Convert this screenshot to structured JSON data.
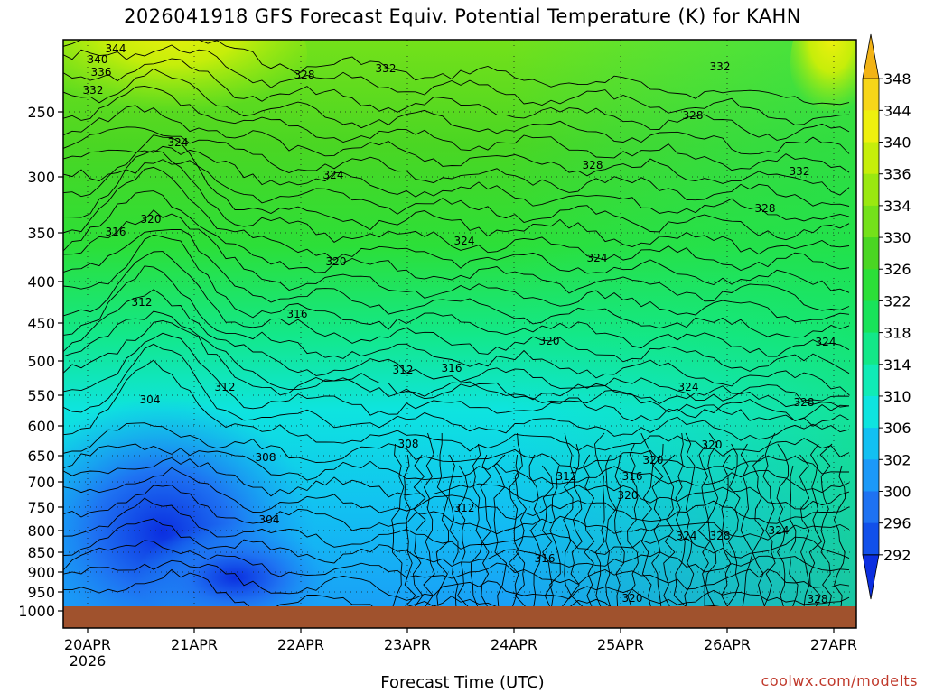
{
  "title": "2026041918 GFS Forecast Equiv. Potential Temperature (K) for KAHN",
  "watermark": "coolwx.com/modelts",
  "chart_data": {
    "type": "heatmap",
    "title": "2026041918 GFS Forecast Equiv. Potential Temperature (K) for KAHN",
    "xlabel": "Forecast Time (UTC)",
    "ylabel": "",
    "x_ticks": [
      "20APR",
      "21APR",
      "22APR",
      "23APR",
      "24APR",
      "25APR",
      "26APR",
      "27APR"
    ],
    "x_tick_sublabel": "2026",
    "y_ticks": [
      250,
      300,
      350,
      400,
      450,
      500,
      550,
      600,
      650,
      700,
      750,
      800,
      850,
      900,
      950,
      1000
    ],
    "y_axis": "pressure (hPa), reversed",
    "ylim": [
      1000,
      200
    ],
    "colorbar_levels": [
      292,
      296,
      300,
      302,
      306,
      310,
      314,
      318,
      322,
      326,
      330,
      334,
      336,
      340,
      344,
      348
    ],
    "colorbar_colors": [
      "#0b2fe0",
      "#1150ea",
      "#1e72f2",
      "#1b99f8",
      "#12c0f2",
      "#0ee4df",
      "#10ebb6",
      "#13e888",
      "#19e35a",
      "#2cdf38",
      "#4ad623",
      "#74e11a",
      "#9ae810",
      "#c6ee0a",
      "#eef00e",
      "#f7d619",
      "#f2b316"
    ],
    "contour_labels": [
      {
        "text": "344"
      },
      {
        "text": "340"
      },
      {
        "text": "336"
      },
      {
        "text": "332"
      },
      {
        "text": "328"
      },
      {
        "text": "332"
      },
      {
        "text": "332"
      },
      {
        "text": "328"
      },
      {
        "text": "324"
      },
      {
        "text": "328"
      },
      {
        "text": "324"
      },
      {
        "text": "332"
      },
      {
        "text": "320"
      },
      {
        "text": "328"
      },
      {
        "text": "316"
      },
      {
        "text": "324"
      },
      {
        "text": "324"
      },
      {
        "text": "320"
      },
      {
        "text": "312"
      },
      {
        "text": "316"
      },
      {
        "text": "320"
      },
      {
        "text": "324"
      },
      {
        "text": "312"
      },
      {
        "text": "316"
      },
      {
        "text": "312"
      },
      {
        "text": "304"
      },
      {
        "text": "324"
      },
      {
        "text": "328"
      },
      {
        "text": "308"
      },
      {
        "text": "308"
      },
      {
        "text": "320"
      },
      {
        "text": "320"
      },
      {
        "text": "312"
      },
      {
        "text": "316"
      },
      {
        "text": "320"
      },
      {
        "text": "304"
      },
      {
        "text": "312"
      },
      {
        "text": "324"
      },
      {
        "text": "328"
      },
      {
        "text": "324"
      },
      {
        "text": "316"
      },
      {
        "text": "320"
      },
      {
        "text": "328"
      }
    ],
    "grid": "dotted"
  }
}
